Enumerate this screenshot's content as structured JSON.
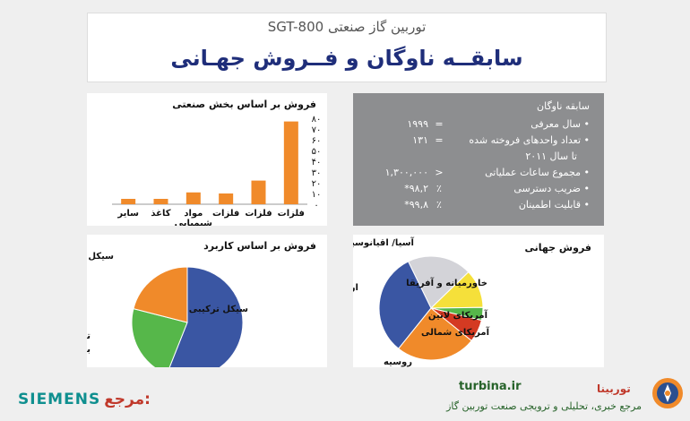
{
  "header": {
    "subtitle": "توربین گاز صنعتی SGT-800",
    "title": "سابقــه ناوگان و فــروش جهـانی"
  },
  "fleet": {
    "title": "سابقه ناوگان",
    "rows": [
      {
        "label": "• سال معرفی",
        "sym": "=",
        "value": "۱۹۹۹"
      },
      {
        "label": "• تعداد واحدهای فروخته شده",
        "sym": "=",
        "value": "۱۳۱"
      },
      {
        "label": "تا سال ۲۰۱۱",
        "sym": "",
        "value": ""
      },
      {
        "label": "• مجموع ساعات عملیاتی",
        "sym": ">",
        "value": "۱,۳۰۰,۰۰۰"
      },
      {
        "label": "• ضریب دسترسی",
        "sym": "٪",
        "value": "*۹۸,۲"
      },
      {
        "label": "• قابلیت اطمینان",
        "sym": "٪",
        "value": "*۹۹,۸"
      }
    ]
  },
  "chart_data": [
    {
      "type": "bar",
      "title": "فروش بر اساس بخش صنعتی",
      "categories": [
        "فلزات",
        "فلزات",
        "فلزات",
        "مواد شیمیایی",
        "کاغذ",
        "سایر"
      ],
      "values": [
        77,
        22,
        10,
        11,
        5,
        5
      ],
      "ylim": [
        0,
        80
      ],
      "yticks": [
        "۰",
        "۱۰",
        "۲۰",
        "۳۰",
        "۴۰",
        "۵۰",
        "۶۰",
        "۷۰",
        "۸۰"
      ],
      "color": "#f08a2a"
    },
    {
      "type": "pie",
      "title": "فروش بر اساس کاربرد",
      "slices": [
        {
          "label": "سیکل ترکیبی",
          "value": 56,
          "color": "#3a56a3"
        },
        {
          "label": "تولید همزمان برق و حرارت",
          "value": 23,
          "color": "#56b74a"
        },
        {
          "label": "سیکل ساده",
          "value": 21,
          "color": "#f08a2a"
        }
      ]
    },
    {
      "type": "pie",
      "title": "فروش جهانی",
      "slices": [
        {
          "label": "آسیا/ اقیانوسیه",
          "value": 20,
          "color": "#d3d3d8"
        },
        {
          "label": "خاورمیانه و آفریقا",
          "value": 12,
          "color": "#f5e03a"
        },
        {
          "label": "آمریکای لاتین",
          "value": 4,
          "color": "#56b74a"
        },
        {
          "label": "آمریکای شمالی",
          "value": 7,
          "color": "#d43a22"
        },
        {
          "label": "روسیه",
          "value": 25,
          "color": "#f08a2a"
        },
        {
          "label": "اروپا",
          "value": 32,
          "color": "#3a56a3"
        }
      ]
    }
  ],
  "footer": {
    "siemens": "SIEMENS",
    "ref": "مرجع:",
    "site": "turbina.ir",
    "brand": "توربینا",
    "tagline": "مرجع خبری، تحلیلی و ترویجی صنعت توربین گاز"
  }
}
